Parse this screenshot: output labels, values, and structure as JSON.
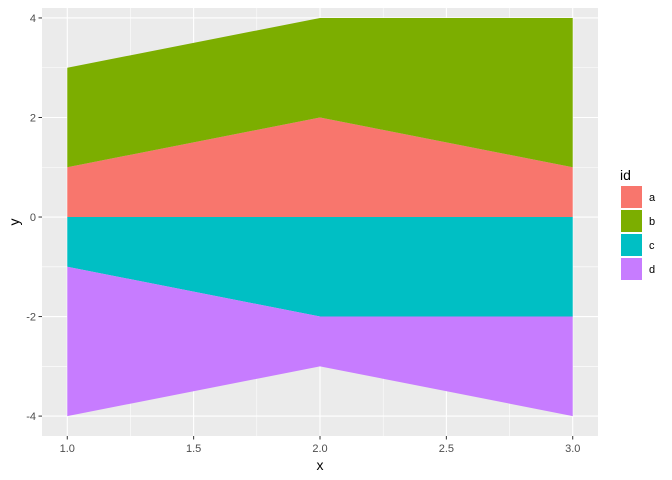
{
  "chart_data": {
    "type": "area",
    "title": "",
    "xlabel": "x",
    "ylabel": "y",
    "xlim": [
      0.9,
      3.1
    ],
    "ylim": [
      -4.4,
      4.2
    ],
    "x": [
      1.0,
      2.0,
      3.0
    ],
    "x_ticks": [
      1.0,
      1.5,
      2.0,
      2.5,
      3.0
    ],
    "x_tick_labels": [
      "1.0",
      "1.5",
      "2.0",
      "2.5",
      "3.0"
    ],
    "y_ticks": [
      -4,
      -2,
      0,
      2,
      4
    ],
    "y_tick_labels": [
      "-4",
      "-2",
      "0",
      "2",
      "4"
    ],
    "stacked": true,
    "series": [
      {
        "name": "a",
        "values": [
          1,
          2,
          1
        ],
        "color": "#F8766D",
        "stack": "positive"
      },
      {
        "name": "b",
        "values": [
          2,
          2,
          3
        ],
        "color": "#7CAE00",
        "stack": "positive"
      },
      {
        "name": "c",
        "values": [
          -1,
          -2,
          -2
        ],
        "color": "#00BFC4",
        "stack": "negative"
      },
      {
        "name": "d",
        "values": [
          -3,
          -1,
          -2
        ],
        "color": "#C77CFF",
        "stack": "negative"
      }
    ],
    "legend": {
      "title": "id",
      "position": "right",
      "entries": [
        "a",
        "b",
        "c",
        "d"
      ]
    },
    "grid": true,
    "panel_background": "#EBEBEB",
    "grid_color": "#FFFFFF"
  }
}
